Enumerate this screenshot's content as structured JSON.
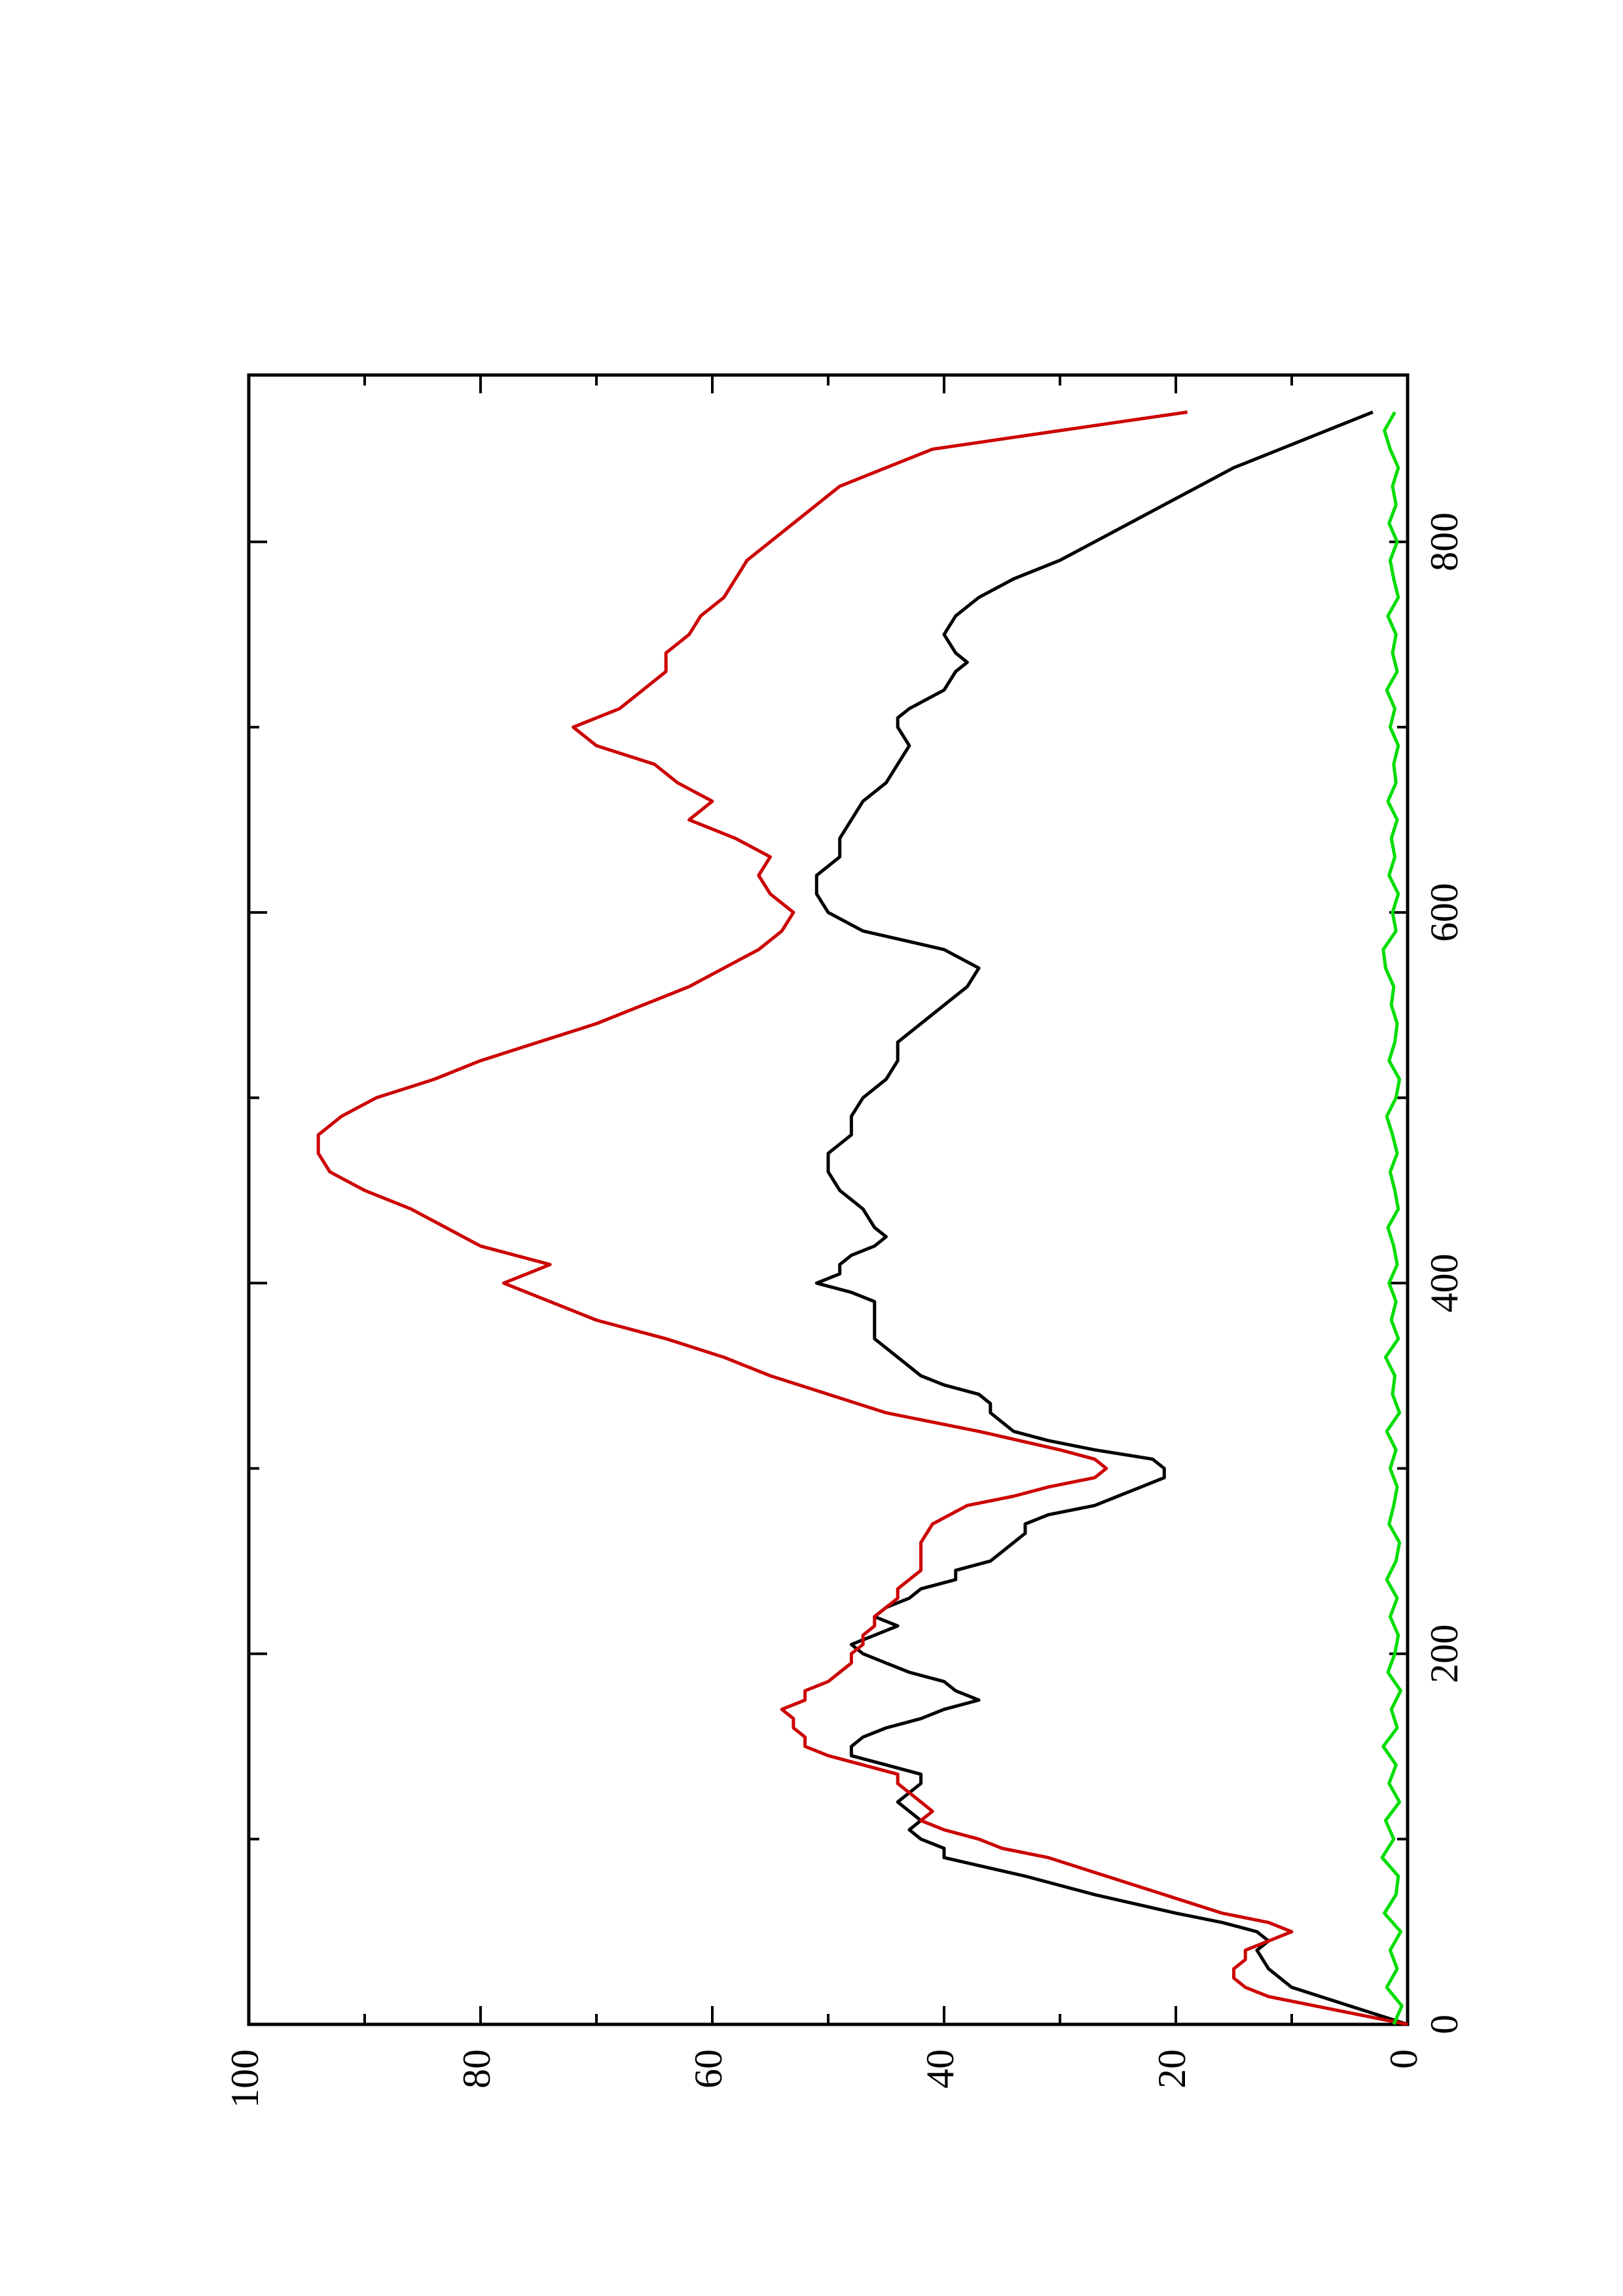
{
  "chart_data": {
    "type": "line",
    "title": "",
    "xlabel": "",
    "ylabel": "",
    "orientation": "rotated-90-ccw",
    "xlim": [
      0,
      890
    ],
    "ylim": [
      0,
      100
    ],
    "grid": false,
    "legend": "none",
    "x_ticks": [
      0,
      200,
      400,
      600,
      800
    ],
    "x_tick_labels": [
      "0",
      "200",
      "400",
      "600",
      "800"
    ],
    "x_minor_ticks": [
      100,
      300,
      500,
      700
    ],
    "y_ticks": [
      0,
      20,
      40,
      60,
      80,
      100
    ],
    "y_tick_labels": [
      "0",
      "20",
      "40",
      "60",
      "80",
      "100"
    ],
    "y_minor_ticks": [
      10,
      30,
      50,
      70,
      90
    ],
    "series": [
      {
        "color": "#000000",
        "x": [
          0,
          10,
          20,
          30,
          40,
          45,
          50,
          55,
          60,
          70,
          80,
          90,
          95,
          100,
          105,
          110,
          115,
          120,
          125,
          130,
          135,
          140,
          145,
          150,
          155,
          160,
          165,
          170,
          175,
          180,
          185,
          190,
          195,
          200,
          205,
          210,
          215,
          220,
          225,
          230,
          235,
          240,
          245,
          250,
          255,
          260,
          265,
          270,
          275,
          280,
          285,
          290,
          295,
          300,
          305,
          310,
          315,
          320,
          325,
          330,
          335,
          340,
          345,
          350,
          360,
          370,
          380,
          390,
          395,
          400,
          405,
          410,
          415,
          420,
          425,
          430,
          440,
          450,
          460,
          470,
          480,
          490,
          500,
          510,
          520,
          530,
          540,
          550,
          560,
          570,
          580,
          590,
          600,
          610,
          620,
          630,
          640,
          650,
          660,
          670,
          680,
          690,
          700,
          705,
          710,
          720,
          730,
          735,
          740,
          750,
          760,
          770,
          780,
          790,
          800,
          810,
          820,
          830,
          840,
          850,
          860,
          870
        ],
        "y": [
          0,
          5,
          10,
          12,
          13,
          12,
          13,
          16,
          20,
          27,
          33,
          40,
          40,
          42,
          43,
          42,
          43,
          44,
          43,
          42,
          42,
          45,
          48,
          48,
          47,
          45,
          42,
          40,
          37,
          39,
          40,
          43,
          45,
          47,
          48,
          46,
          44,
          46,
          45,
          43,
          42,
          39,
          39,
          36,
          35,
          34,
          33,
          33,
          31,
          27,
          25,
          23,
          21,
          21,
          22,
          27,
          31,
          34,
          35,
          36,
          36,
          37,
          40,
          42,
          44,
          46,
          46,
          46,
          48,
          51,
          49,
          49,
          48,
          46,
          45,
          46,
          47,
          49,
          50,
          50,
          48,
          48,
          47,
          45,
          44,
          44,
          42,
          40,
          38,
          37,
          40,
          47,
          50,
          51,
          51,
          49,
          49,
          48,
          47,
          45,
          44,
          43,
          44,
          44,
          43,
          40,
          39,
          38,
          39,
          40,
          39,
          37,
          34,
          30,
          27,
          24,
          21,
          18,
          15,
          11,
          7,
          3
        ]
      },
      {
        "color": "#cc0000",
        "x": [
          0,
          10,
          15,
          20,
          25,
          30,
          35,
          40,
          45,
          50,
          55,
          60,
          70,
          80,
          90,
          95,
          100,
          105,
          110,
          115,
          120,
          125,
          130,
          135,
          140,
          145,
          150,
          155,
          160,
          165,
          170,
          175,
          180,
          185,
          190,
          195,
          200,
          205,
          210,
          215,
          220,
          225,
          230,
          235,
          240,
          245,
          250,
          255,
          260,
          270,
          280,
          285,
          290,
          295,
          300,
          305,
          310,
          320,
          330,
          340,
          350,
          360,
          370,
          380,
          390,
          395,
          400,
          405,
          410,
          415,
          420,
          430,
          440,
          450,
          460,
          470,
          480,
          490,
          500,
          510,
          520,
          530,
          540,
          550,
          560,
          570,
          580,
          590,
          600,
          610,
          620,
          630,
          640,
          650,
          660,
          670,
          680,
          690,
          700,
          705,
          710,
          720,
          730,
          740,
          750,
          760,
          770,
          780,
          790,
          800,
          810,
          820,
          830,
          840,
          850,
          860,
          870
        ],
        "y": [
          0,
          8,
          12,
          14,
          15,
          15,
          14,
          14,
          12,
          10,
          12,
          16,
          21,
          26,
          31,
          35,
          37,
          40,
          42,
          41,
          42,
          43,
          44,
          44,
          47,
          50,
          52,
          52,
          53,
          53,
          54,
          52,
          52,
          50,
          49,
          48,
          48,
          47,
          47,
          46,
          46,
          45,
          44,
          44,
          43,
          42,
          42,
          42,
          42,
          41,
          38,
          34,
          31,
          27,
          26,
          27,
          30,
          37,
          45,
          50,
          55,
          59,
          64,
          70,
          74,
          76,
          78,
          76,
          74,
          77,
          80,
          83,
          86,
          90,
          93,
          94,
          94,
          92,
          89,
          84,
          80,
          75,
          70,
          66,
          62,
          59,
          56,
          54,
          53,
          55,
          56,
          55,
          58,
          62,
          60,
          63,
          65,
          70,
          72,
          70,
          68,
          66,
          64,
          64,
          62,
          61,
          59,
          58,
          57,
          55,
          53,
          51,
          49,
          45,
          41,
          30,
          19
        ]
      },
      {
        "color": "#00dd00",
        "x": [
          0,
          10,
          20,
          30,
          40,
          50,
          60,
          70,
          80,
          90,
          100,
          110,
          120,
          130,
          140,
          150,
          160,
          170,
          180,
          190,
          200,
          210,
          220,
          230,
          240,
          250,
          260,
          270,
          280,
          290,
          300,
          310,
          320,
          330,
          340,
          350,
          360,
          370,
          380,
          390,
          400,
          410,
          420,
          430,
          440,
          450,
          460,
          470,
          480,
          490,
          500,
          510,
          520,
          530,
          540,
          550,
          560,
          570,
          580,
          590,
          600,
          610,
          620,
          630,
          640,
          650,
          660,
          670,
          680,
          690,
          700,
          710,
          720,
          730,
          740,
          750,
          760,
          770,
          780,
          790,
          800,
          810,
          820,
          830,
          840,
          850,
          860,
          870
        ],
        "y": [
          1.2,
          0.5,
          1.8,
          0.9,
          1.5,
          0.6,
          2.0,
          1.0,
          0.8,
          2.2,
          1.2,
          1.9,
          0.7,
          1.6,
          1.0,
          2.1,
          0.9,
          1.4,
          0.6,
          1.7,
          1.1,
          0.8,
          1.5,
          0.9,
          1.8,
          1.0,
          0.7,
          1.6,
          1.2,
          0.9,
          1.5,
          1.0,
          1.8,
          0.7,
          1.3,
          1.1,
          1.9,
          0.8,
          1.4,
          1.0,
          1.6,
          0.9,
          1.2,
          1.7,
          0.8,
          1.1,
          1.5,
          0.9,
          1.3,
          1.8,
          1.0,
          0.7,
          1.6,
          1.1,
          0.9,
          1.4,
          1.2,
          1.9,
          2.1,
          1.0,
          1.3,
          0.8,
          1.6,
          1.1,
          1.4,
          0.9,
          1.7,
          1.0,
          1.2,
          0.8,
          1.5,
          1.1,
          1.8,
          0.9,
          1.3,
          1.0,
          1.7,
          0.8,
          1.2,
          1.5,
          0.9,
          1.6,
          1.0,
          1.3,
          0.8,
          1.5,
          2.0,
          1.1
        ]
      }
    ]
  }
}
